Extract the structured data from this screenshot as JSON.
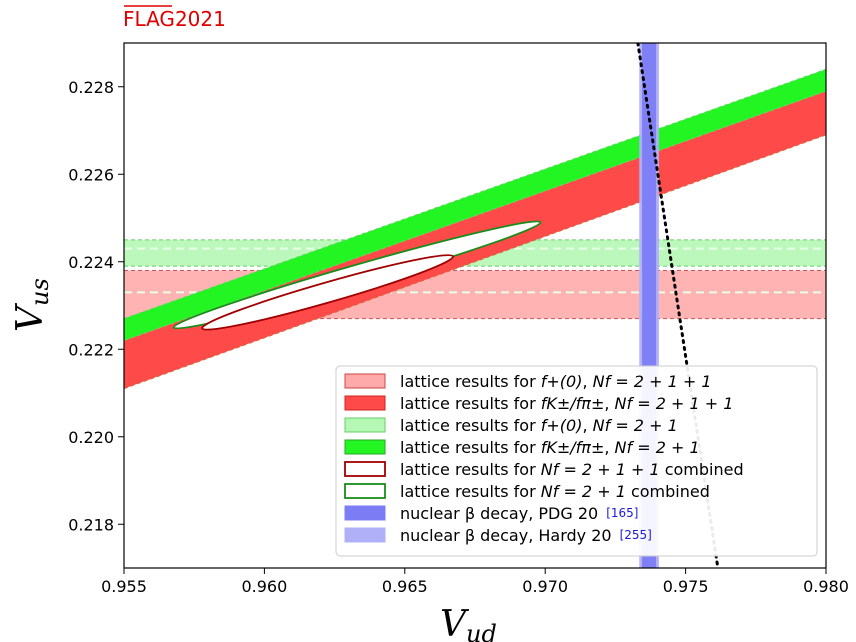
{
  "logo": {
    "text": "FLAG",
    "year": "2021",
    "color": "#e00000"
  },
  "chart_data": {
    "type": "area",
    "xlabel": "V",
    "xlabel_sub": "ud",
    "ylabel": "V",
    "ylabel_sub": "us",
    "xlim": [
      0.955,
      0.98
    ],
    "ylim": [
      0.217,
      0.229
    ],
    "xticks": [
      "0.955",
      "0.960",
      "0.965",
      "0.970",
      "0.975",
      "0.980"
    ],
    "yticks": [
      "0.218",
      "0.220",
      "0.222",
      "0.224",
      "0.226",
      "0.228"
    ],
    "horizontal_bands": [
      {
        "name": "lattice results for f+(0), Nf=2+1+1",
        "y": [
          0.2227,
          0.2238
        ],
        "center": 0.2233,
        "color": "#ff9999"
      },
      {
        "name": "lattice results for f+(0), Nf=2+1",
        "y": [
          0.2239,
          0.2245
        ],
        "center": 0.2243,
        "color": "#a6f5a6"
      }
    ],
    "slanted_bands": [
      {
        "name": "lattice results for fK/fpi, Nf=2+1+1",
        "x": [
          0.955,
          0.98
        ],
        "lower": [
          0.2211,
          0.2269
        ],
        "upper": [
          0.2222,
          0.2279
        ],
        "color": "#ff4a4a"
      },
      {
        "name": "lattice results for fK/fpi, Nf=2+1",
        "x": [
          0.955,
          0.98
        ],
        "lower": [
          0.2222,
          0.2279
        ],
        "upper": [
          0.2227,
          0.2284
        ],
        "color": "#22f522"
      }
    ],
    "vertical_bands": [
      {
        "name": "nuclear beta decay, PDG 20",
        "x": [
          0.97345,
          0.97395
        ],
        "color": "#7c7cf5"
      },
      {
        "name": "nuclear beta decay, Hardy 20",
        "x": [
          0.97335,
          0.97405
        ],
        "color": "#b0b0f8"
      }
    ],
    "ellipses": [
      {
        "name": "lattice results for Nf=2+1+1 combined",
        "center": [
          0.96225,
          0.2233
        ],
        "x_extent": [
          0.9576,
          0.9669
        ],
        "y_extent": [
          0.2225,
          0.2241
        ],
        "color": "#a00000"
      },
      {
        "name": "lattice results for Nf=2+1 combined",
        "center": [
          0.9633,
          0.2237
        ],
        "x_extent": [
          0.9565,
          0.9701
        ],
        "y_extent": [
          0.2227,
          0.22475
        ],
        "color": "#1a8c1a"
      }
    ],
    "unitarity_line": {
      "points": [
        [
          0.9733,
          0.229
        ],
        [
          0.97615,
          0.217
        ]
      ],
      "color": "#000000"
    },
    "legend_position": "lower right",
    "legend": [
      {
        "pre": "lattice results for ",
        "math": "f+(0)",
        "mid": ", ",
        "nf": "Nf = 2 + 1 + 1",
        "post": "",
        "ref": "",
        "swatch": "fill",
        "color": "#ffaaaa",
        "edge": "#cc4444"
      },
      {
        "pre": "lattice results for ",
        "math": "fK±/fπ±",
        "mid": ", ",
        "nf": "Nf = 2 + 1 + 1",
        "post": "",
        "ref": "",
        "swatch": "fill",
        "color": "#ff4a4a",
        "edge": "#cc2222"
      },
      {
        "pre": "lattice results for ",
        "math": "f+(0)",
        "mid": ", ",
        "nf": "Nf = 2 + 1",
        "post": "",
        "ref": "",
        "swatch": "fill",
        "color": "#b5f7b5",
        "edge": "#66cc66"
      },
      {
        "pre": "lattice results for ",
        "math": "fK±/fπ±",
        "mid": ", ",
        "nf": "Nf = 2 + 1",
        "post": "",
        "ref": "",
        "swatch": "fill",
        "color": "#22f522",
        "edge": "#22aa22"
      },
      {
        "pre": "lattice results for ",
        "math": "",
        "mid": "",
        "nf": "Nf = 2 + 1 + 1",
        "post": " combined",
        "ref": "",
        "swatch": "outline",
        "color": "#ffffff",
        "edge": "#a00000"
      },
      {
        "pre": "lattice results for ",
        "math": "",
        "mid": "",
        "nf": "Nf = 2 + 1",
        "post": " combined",
        "ref": "",
        "swatch": "outline",
        "color": "#ffffff",
        "edge": "#1a8c1a"
      },
      {
        "pre": "nuclear β decay, PDG 20",
        "math": "",
        "mid": "",
        "nf": "",
        "post": "",
        "ref": "[165]",
        "swatch": "fill",
        "color": "#7c7cf5",
        "edge": "#7c7cf5"
      },
      {
        "pre": "nuclear β decay, Hardy 20",
        "math": "",
        "mid": "",
        "nf": "",
        "post": "",
        "ref": "[255]",
        "swatch": "fill",
        "color": "#b0b0f8",
        "edge": "#b0b0f8"
      }
    ]
  }
}
